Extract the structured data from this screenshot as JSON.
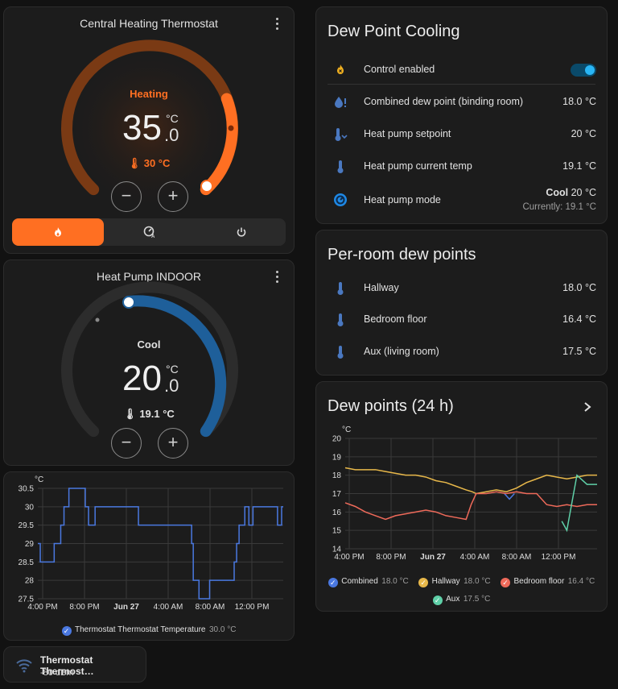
{
  "thermostat": {
    "title": "Central Heating Thermostat",
    "action": "Heating",
    "target_int": "35",
    "target_dec": ".0",
    "unit": "°C",
    "current": "30 °C",
    "target_value": 35.0,
    "current_value": 30,
    "colors": {
      "accent": "#ff6f22",
      "track": "#7a3a12"
    },
    "modes": [
      "heat",
      "auto",
      "off"
    ],
    "active_mode": "heat"
  },
  "heatpump": {
    "title": "Heat Pump INDOOR",
    "action": "Cool",
    "target_int": "20",
    "target_dec": ".0",
    "unit": "°C",
    "current": "19.1 °C",
    "target_value": 20.0,
    "current_value": 19.1,
    "colors": {
      "accent": "#1e6fb0",
      "track": "#2c2c2c"
    }
  },
  "thermostat_chart": {
    "unit": "°C",
    "legend": "Thermostat Thermostat Temperature",
    "legend_value": "30.0 °C",
    "color": "#4a78e0"
  },
  "signal": {
    "name": "Thermostat Thermost…",
    "value": "-80 dBm",
    "icon": "wifi-icon"
  },
  "dew_cooling": {
    "title": "Dew Point Cooling",
    "rows": [
      {
        "label": "Control enabled",
        "icon": "flame-sparkle-icon",
        "toggle": true
      },
      {
        "label": "Combined dew point (binding room)",
        "value": "18.0 °C",
        "icon": "water-alert-icon"
      },
      {
        "label": "Heat pump setpoint",
        "value": "20 °C",
        "icon": "thermometer-chevron-icon"
      },
      {
        "label": "Heat pump current temp",
        "value": "19.1 °C",
        "icon": "thermometer-icon"
      },
      {
        "label": "Heat pump mode",
        "value_bold": "Cool",
        "value": "20 °C",
        "sub": "Currently: 19.1 °C",
        "icon": "thermostat-mode-icon"
      }
    ]
  },
  "per_room": {
    "title": "Per-room dew points",
    "rows": [
      {
        "label": "Hallway",
        "value": "18.0 °C",
        "icon": "thermometer-icon"
      },
      {
        "label": "Bedroom floor",
        "value": "16.4 °C",
        "icon": "thermometer-icon"
      },
      {
        "label": "Aux (living room)",
        "value": "17.5 °C",
        "icon": "thermometer-icon"
      }
    ]
  },
  "dew_chart": {
    "title": "Dew points (24 h)",
    "unit": "°C",
    "legend": [
      {
        "name": "Combined",
        "value": "18.0 °C",
        "color": "#4a78e0"
      },
      {
        "name": "Hallway",
        "value": "18.0 °C",
        "color": "#e8b84a"
      },
      {
        "name": "Bedroom floor",
        "value": "16.4 °C",
        "color": "#ef6a5a"
      },
      {
        "name": "Aux",
        "value": "17.5 °C",
        "color": "#5fd0a8"
      }
    ]
  },
  "chart_data": [
    {
      "type": "line",
      "x": [
        "4:00 PM",
        "8:00 PM",
        "Jun 27",
        "4:00 AM",
        "8:00 AM",
        "12:00 PM"
      ],
      "xlabel": "",
      "ylabel": "°C",
      "ylim": [
        27.5,
        30.5
      ],
      "yticks": [
        27.5,
        28,
        28.5,
        29,
        29.5,
        30,
        30.5
      ],
      "grid": true,
      "legend_position": "bottom",
      "series": [
        {
          "name": "Thermostat Thermostat Temperature",
          "step": true,
          "points": [
            [
              0,
              29
            ],
            [
              0.3,
              28.5
            ],
            [
              2,
              29
            ],
            [
              2.8,
              29.5
            ],
            [
              3.2,
              30
            ],
            [
              3.8,
              30.5
            ],
            [
              5.8,
              30
            ],
            [
              6.2,
              29.5
            ],
            [
              7,
              30
            ],
            [
              12.3,
              29.5
            ],
            [
              18.8,
              29
            ],
            [
              19,
              28
            ],
            [
              19.7,
              27.5
            ],
            [
              21,
              28
            ],
            [
              24,
              28.5
            ],
            [
              24.3,
              29
            ],
            [
              24.6,
              29.5
            ],
            [
              25.3,
              30
            ],
            [
              25.8,
              29.5
            ],
            [
              26.3,
              30
            ],
            [
              29.3,
              29.5
            ],
            [
              29.8,
              30
            ]
          ]
        }
      ]
    },
    {
      "type": "line",
      "x": [
        "4:00 PM",
        "8:00 PM",
        "Jun 27",
        "4:00 AM",
        "8:00 AM",
        "12:00 PM"
      ],
      "xlabel": "",
      "ylabel": "°C",
      "ylim": [
        14,
        20
      ],
      "yticks": [
        14,
        15,
        16,
        17,
        18,
        19,
        20
      ],
      "grid": true,
      "legend_position": "bottom",
      "series": [
        {
          "name": "Combined",
          "points": [
            [
              15.8,
              17
            ],
            [
              16.3,
              16.7
            ],
            [
              16.8,
              17
            ]
          ]
        },
        {
          "name": "Hallway",
          "points": [
            [
              0,
              18.4
            ],
            [
              1,
              18.3
            ],
            [
              2,
              18.3
            ],
            [
              3,
              18.3
            ],
            [
              4,
              18.2
            ],
            [
              5,
              18.1
            ],
            [
              6,
              18
            ],
            [
              7,
              18
            ],
            [
              8,
              17.9
            ],
            [
              9,
              17.7
            ],
            [
              10,
              17.6
            ],
            [
              11,
              17.4
            ],
            [
              12,
              17.2
            ],
            [
              12.6,
              17.1
            ],
            [
              13,
              17
            ],
            [
              14,
              17.1
            ],
            [
              15,
              17.2
            ],
            [
              16,
              17.1
            ],
            [
              17,
              17.3
            ],
            [
              18,
              17.6
            ],
            [
              19,
              17.8
            ],
            [
              20,
              18
            ],
            [
              21,
              17.9
            ],
            [
              22,
              17.8
            ],
            [
              23,
              17.9
            ],
            [
              24,
              18
            ],
            [
              25,
              18
            ]
          ]
        },
        {
          "name": "Bedroom floor",
          "points": [
            [
              0,
              16.5
            ],
            [
              1,
              16.3
            ],
            [
              2,
              16
            ],
            [
              3,
              15.8
            ],
            [
              4,
              15.6
            ],
            [
              5,
              15.8
            ],
            [
              6,
              15.9
            ],
            [
              7,
              16
            ],
            [
              8,
              16.1
            ],
            [
              9,
              16
            ],
            [
              10,
              15.8
            ],
            [
              11,
              15.7
            ],
            [
              12,
              15.6
            ],
            [
              12.5,
              16.4
            ],
            [
              13,
              17
            ],
            [
              14,
              17
            ],
            [
              15,
              17.1
            ],
            [
              16,
              17
            ],
            [
              17,
              17.1
            ],
            [
              18,
              17
            ],
            [
              19,
              17
            ],
            [
              20,
              16.4
            ],
            [
              21,
              16.3
            ],
            [
              22,
              16.4
            ],
            [
              23,
              16.3
            ],
            [
              24,
              16.4
            ],
            [
              25,
              16.4
            ]
          ]
        },
        {
          "name": "Aux",
          "points": [
            [
              21.5,
              15.5
            ],
            [
              22,
              15
            ],
            [
              22.5,
              16.5
            ],
            [
              23,
              18
            ],
            [
              24,
              17.5
            ],
            [
              25,
              17.5
            ]
          ]
        }
      ]
    }
  ]
}
